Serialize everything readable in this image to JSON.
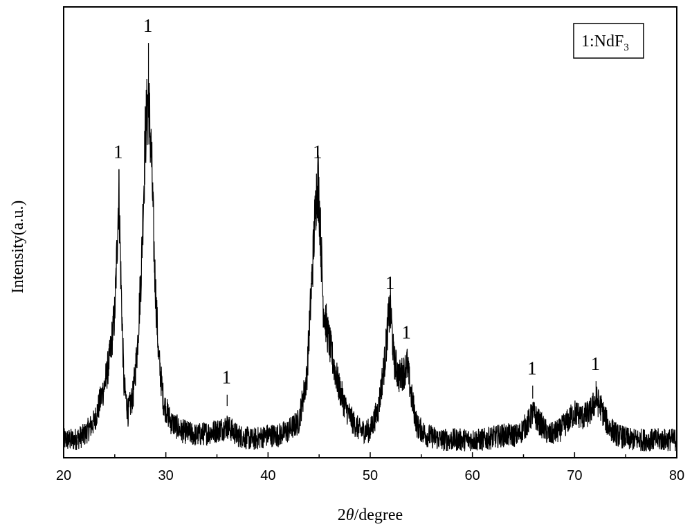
{
  "chart_data": {
    "type": "line",
    "xlabel_prefix": "2",
    "xlabel_symbol": "θ",
    "xlabel_suffix": "/degree",
    "ylabel": "Intensity(a.u.)",
    "xlim": [
      20,
      80
    ],
    "ylim": [
      0,
      100
    ],
    "x_ticks": [
      "20",
      "30",
      "40",
      "50",
      "60",
      "70",
      "80"
    ],
    "y_ticks_labeled": false,
    "grid": false,
    "legend": {
      "placement": "top-right",
      "text_main": "1:NdF",
      "text_sub": "3"
    },
    "peaks": [
      {
        "x": 25.4,
        "y": 64,
        "label": "1"
      },
      {
        "x": 28.3,
        "y": 92,
        "label": "1"
      },
      {
        "x": 36.0,
        "y": 14,
        "label": "1"
      },
      {
        "x": 44.9,
        "y": 64,
        "label": "1"
      },
      {
        "x": 52.0,
        "y": 35,
        "label": "1"
      },
      {
        "x": 53.6,
        "y": 24,
        "label": "1"
      },
      {
        "x": 65.9,
        "y": 16,
        "label": "1"
      },
      {
        "x": 72.1,
        "y": 17,
        "label": "1"
      }
    ],
    "series": [
      {
        "x": [
          20,
          21,
          22,
          23,
          23.5,
          24,
          24.5,
          25,
          25.2,
          25.4,
          25.6,
          25.9,
          26.3,
          26.8,
          27.2,
          27.6,
          28.0,
          28.3,
          28.6,
          28.9,
          29.3,
          29.8,
          30.5,
          31.5,
          33,
          35,
          36,
          37,
          38.5,
          40,
          41,
          42,
          43,
          43.8,
          44.3,
          44.7,
          44.9,
          45.1,
          45.4,
          45.8,
          46.3,
          46.9,
          47.6,
          48.3,
          49,
          50,
          50.8,
          51.4,
          51.8,
          52.0,
          52.3,
          52.8,
          53.3,
          53.6,
          54.0,
          54.6,
          55.5,
          57,
          59,
          61,
          63,
          64.5,
          65.5,
          65.9,
          66.5,
          67.5,
          68.5,
          69.3,
          70,
          70.8,
          71.5,
          72.1,
          72.6,
          73.3,
          74.2,
          75.5,
          77,
          78.5,
          80
        ],
        "y": [
          4,
          4,
          5,
          8,
          12,
          16,
          22,
          32,
          45,
          60,
          40,
          16,
          10,
          14,
          24,
          42,
          72,
          80,
          66,
          42,
          22,
          12,
          8,
          6,
          5,
          6,
          7,
          5,
          4,
          5,
          5,
          6,
          8,
          18,
          40,
          58,
          62,
          52,
          34,
          28,
          22,
          16,
          11,
          8,
          6,
          6,
          11,
          21,
          31,
          33,
          22,
          18,
          19,
          21,
          14,
          7,
          5,
          4,
          4,
          4,
          5,
          5,
          8,
          10,
          8,
          5,
          6,
          8,
          10,
          9,
          10,
          13,
          11,
          7,
          5,
          4,
          4,
          4,
          4
        ]
      }
    ]
  }
}
